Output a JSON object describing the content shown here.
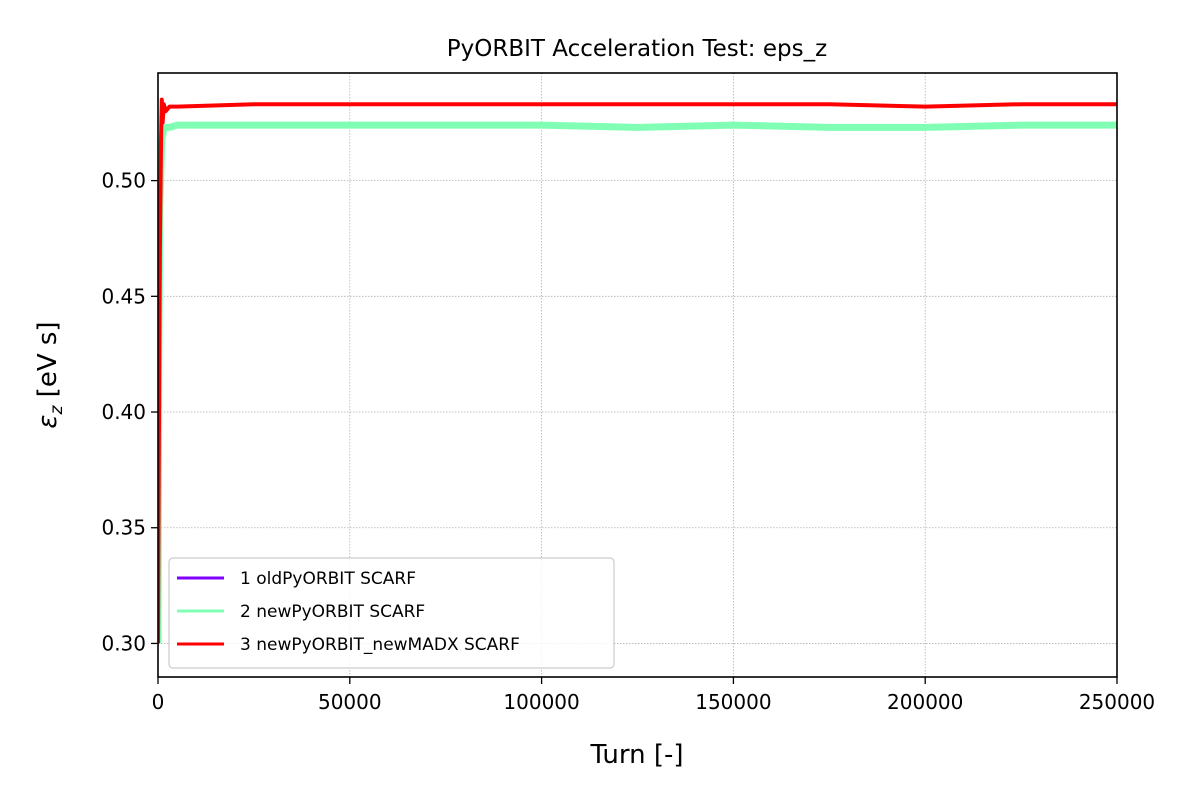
{
  "chart_data": {
    "type": "line",
    "title": "PyORBIT Acceleration Test: eps_z",
    "xlabel": "Turn [-]",
    "ylabel_symbol": "ε",
    "ylabel_sub": "z",
    "ylabel_unit": " [eV s]",
    "xlim": [
      0,
      250000
    ],
    "ylim": [
      0.2855,
      0.5465
    ],
    "xticks": [
      0,
      50000,
      100000,
      150000,
      200000,
      250000
    ],
    "yticks": [
      0.3,
      0.35,
      0.4,
      0.45,
      0.5
    ],
    "xtick_labels": [
      "0",
      "50000",
      "100000",
      "150000",
      "200000",
      "250000"
    ],
    "ytick_labels": [
      "0.30",
      "0.35",
      "0.40",
      "0.45",
      "0.50"
    ],
    "grid": true,
    "legend_position": "lower-left",
    "series": [
      {
        "name": "1 oldPyORBIT SCARF",
        "color": "#8000ff",
        "x": [
          0,
          200,
          500,
          1000,
          1500,
          2000,
          3000,
          5000,
          10000
        ],
        "y": [
          0.3,
          0.42,
          0.49,
          0.518,
          0.522,
          0.523,
          0.523,
          0.524,
          0.524
        ]
      },
      {
        "name": "2 newPyORBIT SCARF",
        "color": "#80ffb4",
        "x": [
          0,
          200,
          500,
          1000,
          1500,
          2000,
          3000,
          5000,
          25000,
          50000,
          75000,
          100000,
          125000,
          150000,
          175000,
          200000,
          225000,
          250000
        ],
        "y": [
          0.3,
          0.42,
          0.49,
          0.518,
          0.522,
          0.523,
          0.523,
          0.524,
          0.524,
          0.524,
          0.524,
          0.524,
          0.523,
          0.524,
          0.523,
          0.523,
          0.524,
          0.524
        ]
      },
      {
        "name": "3 newPyORBIT_newMADX SCARF",
        "color": "#ff0000",
        "x": [
          0,
          200,
          500,
          800,
          1000,
          1200,
          1500,
          2000,
          3000,
          5000,
          25000,
          50000,
          75000,
          100000,
          125000,
          150000,
          175000,
          200000,
          225000,
          250000
        ],
        "y": [
          0.3,
          0.38,
          0.47,
          0.52,
          0.535,
          0.525,
          0.533,
          0.53,
          0.532,
          0.532,
          0.533,
          0.533,
          0.533,
          0.533,
          0.533,
          0.533,
          0.533,
          0.532,
          0.533,
          0.533
        ]
      }
    ]
  }
}
